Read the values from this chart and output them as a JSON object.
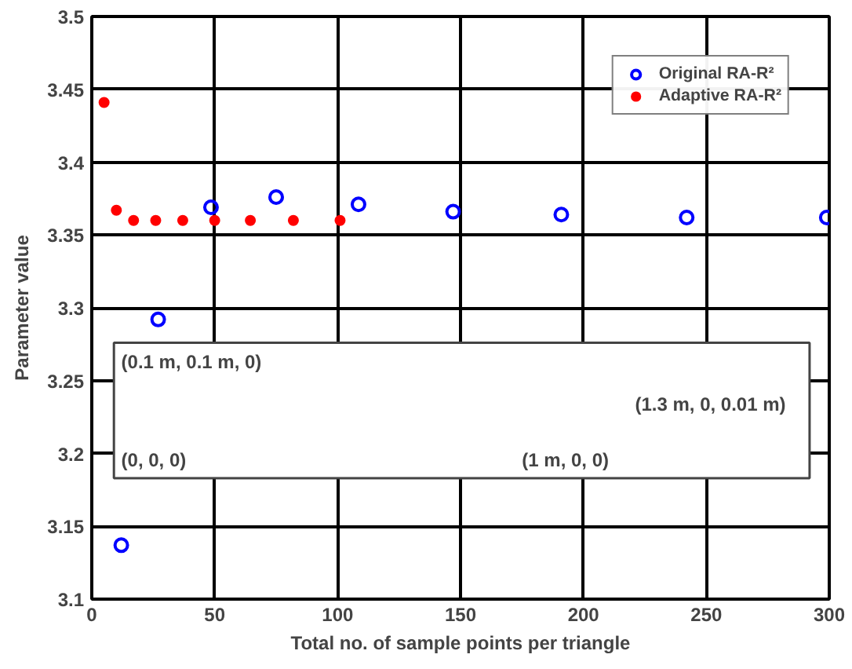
{
  "chart_data": {
    "type": "scatter",
    "xlabel": "Total no. of sample points per triangle",
    "ylabel": "Parameter value",
    "xlim": [
      0,
      300
    ],
    "xticks": [
      0,
      50,
      100,
      150,
      200,
      250,
      300
    ],
    "ylim": [
      3.1,
      3.5
    ],
    "yticks": [
      3.1,
      3.15,
      3.2,
      3.25,
      3.3,
      3.35,
      3.4,
      3.45,
      3.5
    ],
    "grid": true,
    "legend": "top right",
    "series": [
      {
        "name": "Original RA-R²",
        "color": "#0000ff",
        "marker": "circle_open",
        "x": [
          12,
          27,
          48.5,
          75,
          108.5,
          147,
          191,
          242,
          299
        ],
        "values": [
          3.137,
          3.292,
          3.369,
          3.376,
          3.371,
          3.366,
          3.364,
          3.362,
          3.362
        ]
      },
      {
        "name": "Adaptive RA-R²",
        "color": "#ff0000",
        "marker": "circle",
        "x": [
          5,
          10,
          17,
          26,
          37,
          50,
          64.5,
          82,
          101
        ],
        "values": [
          3.441,
          3.367,
          3.36,
          3.36,
          3.36,
          3.36,
          3.36,
          3.36,
          3.36
        ]
      }
    ],
    "annotations": [
      "(0.1 m, 0.1 m, 0)",
      "(0, 0, 0)",
      "(1 m, 0, 0)",
      "(1.3 m, 0, 0.01 m)"
    ]
  }
}
